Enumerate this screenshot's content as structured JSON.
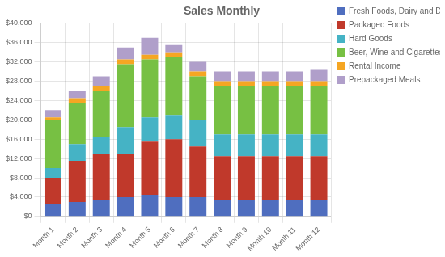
{
  "chart_data": {
    "type": "bar",
    "title": "Sales Monthly",
    "categories": [
      "Month 1",
      "Month 2",
      "Month 3",
      "Month 4",
      "Month 5",
      "Month 6",
      "Month 7",
      "Month 8",
      "Month 9",
      "Month 10",
      "Month 11",
      "Month 12"
    ],
    "series": [
      {
        "name": "Fresh Foods, Dairy and Drinks",
        "color": "#4F6EBF",
        "values": [
          2500,
          3000,
          3500,
          4000,
          4500,
          4000,
          4000,
          3500,
          3500,
          3500,
          3500,
          3500
        ]
      },
      {
        "name": "Packaged Foods",
        "color": "#C0392B",
        "values": [
          5500,
          8500,
          9500,
          9000,
          11000,
          12000,
          10500,
          9000,
          9000,
          9000,
          9000,
          9000
        ]
      },
      {
        "name": "Hard Goods",
        "color": "#45B3C5",
        "values": [
          2000,
          3500,
          3500,
          5500,
          5000,
          5000,
          5500,
          4500,
          4500,
          4500,
          4500,
          4500
        ]
      },
      {
        "name": "Beer, Wine and Cigarettes",
        "color": "#77C043",
        "values": [
          10000,
          8500,
          9500,
          13000,
          12000,
          12000,
          9000,
          10000,
          10000,
          10000,
          10000,
          10000
        ]
      },
      {
        "name": "Rental Income",
        "color": "#F5A623",
        "values": [
          500,
          1000,
          1000,
          1000,
          1000,
          1000,
          1000,
          1000,
          1000,
          1000,
          1000,
          1000
        ]
      },
      {
        "name": "Prepackaged Meals",
        "color": "#B09FCA",
        "values": [
          1500,
          1500,
          2000,
          2500,
          3500,
          1500,
          2000,
          2000,
          2000,
          2000,
          2000,
          2500
        ]
      }
    ],
    "stacked": true,
    "ylim": [
      0,
      40000
    ],
    "yticks": [
      {
        "value": 0,
        "label": "$0"
      },
      {
        "value": 4000,
        "label": "$4,000"
      },
      {
        "value": 8000,
        "label": "$8,000"
      },
      {
        "value": 12000,
        "label": "$12,000"
      },
      {
        "value": 16000,
        "label": "$16,000"
      },
      {
        "value": 20000,
        "label": "$20,000"
      },
      {
        "value": 24000,
        "label": "$24,000"
      },
      {
        "value": 28000,
        "label": "$28,000"
      },
      {
        "value": 32000,
        "label": "$32,000"
      },
      {
        "value": 36000,
        "label": "$36,000"
      },
      {
        "value": 40000,
        "label": "$40,000"
      }
    ],
    "grid": true,
    "legend": "right"
  }
}
